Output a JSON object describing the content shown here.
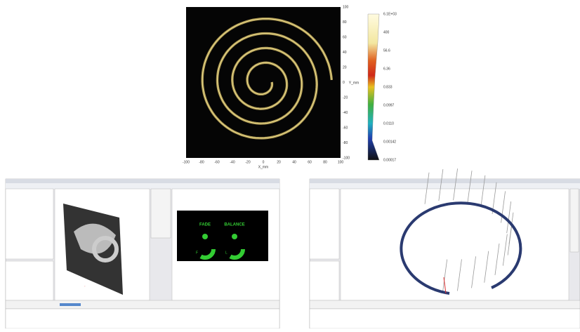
{
  "plot": {
    "xticks": [
      -100,
      -80,
      -60,
      -40,
      -20,
      0,
      20,
      40,
      60,
      80,
      100
    ],
    "yticks": [
      100,
      80,
      60,
      40,
      20,
      0,
      -20,
      -40,
      -60,
      -80,
      -100
    ],
    "xlabel": "X_mm",
    "ylabel": "Y_mm",
    "colorbar": [
      "6.1E+03",
      "400",
      "56.6",
      "6.36",
      "0.833",
      "0.0997",
      "0.0110",
      "0.00142",
      "0.00017"
    ]
  },
  "screen_left": {
    "labels": [
      "FADE",
      "BALANCE"
    ],
    "letters": [
      "F",
      "R",
      "L",
      "R"
    ]
  }
}
